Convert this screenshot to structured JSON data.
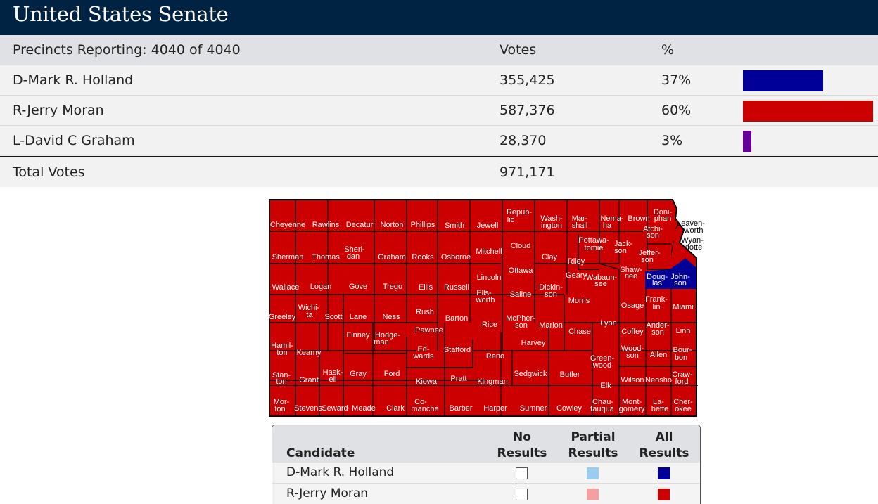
{
  "title": "United States Senate",
  "header": {
    "precincts": "Precincts Reporting: 4040 of 4040",
    "votes_label": "Votes",
    "pct_label": "%"
  },
  "candidates": [
    {
      "name": "D-Mark R. Holland",
      "votes": "355,425",
      "pct": "37%",
      "share": 0.37,
      "color": "#000099"
    },
    {
      "name": "R-Jerry Moran",
      "votes": "587,376",
      "pct": "60%",
      "share": 0.6,
      "color": "#cc0000"
    },
    {
      "name": "L-David C Graham",
      "votes": "28,370",
      "pct": "3%",
      "share": 0.03,
      "color": "#660099"
    }
  ],
  "total": {
    "label": "Total Votes",
    "votes": "971,171"
  },
  "map": {
    "colors": {
      "republican": "#cc0000",
      "democrat": "#000099"
    },
    "counties": [
      [
        "Cheyenne",
        "republican"
      ],
      [
        "Rawlins",
        "republican"
      ],
      [
        "Decatur",
        "republican"
      ],
      [
        "Norton",
        "republican"
      ],
      [
        "Phillips",
        "republican"
      ],
      [
        "Smith",
        "republican"
      ],
      [
        "Jewell",
        "republican"
      ],
      [
        "Repub-",
        "republican"
      ],
      [
        "lic",
        "republican"
      ],
      [
        "Wash-",
        "republican"
      ],
      [
        "ington",
        "republican"
      ],
      [
        "Mar-",
        "republican"
      ],
      [
        "shall",
        "republican"
      ],
      [
        "Nema-",
        "republican"
      ],
      [
        "ha",
        "republican"
      ],
      [
        "Brown",
        "republican"
      ],
      [
        "Doni-",
        "republican"
      ],
      [
        "phan",
        "republican"
      ],
      [
        "Sherman",
        "republican"
      ],
      [
        "Thomas",
        "republican"
      ],
      [
        "Sheri-",
        "republican"
      ],
      [
        "dan",
        "republican"
      ],
      [
        "Graham",
        "republican"
      ],
      [
        "Rooks",
        "republican"
      ],
      [
        "Osborne",
        "republican"
      ],
      [
        "Mitchell",
        "republican"
      ],
      [
        "Cloud",
        "republican"
      ],
      [
        "Clay",
        "republican"
      ],
      [
        "Riley",
        "republican"
      ],
      [
        "Pottawa-",
        "republican"
      ],
      [
        "tomie",
        "republican"
      ],
      [
        "Jack-",
        "republican"
      ],
      [
        "son",
        "republican"
      ],
      [
        "Atchi-",
        "republican"
      ],
      [
        "son",
        "republican"
      ],
      [
        "Jeffer-",
        "republican"
      ],
      [
        "son",
        "republican"
      ],
      [
        "Wallace",
        "republican"
      ],
      [
        "Logan",
        "republican"
      ],
      [
        "Gove",
        "republican"
      ],
      [
        "Trego",
        "republican"
      ],
      [
        "Ellis",
        "republican"
      ],
      [
        "Russell",
        "republican"
      ],
      [
        "Lincoln",
        "republican"
      ],
      [
        "Ottawa",
        "republican"
      ],
      [
        "Geary",
        "republican"
      ],
      [
        "Wabaun-",
        "republican"
      ],
      [
        "see",
        "republican"
      ],
      [
        "Shaw-",
        "republican"
      ],
      [
        "nee",
        "republican"
      ],
      [
        "Doug-",
        "democrat"
      ],
      [
        "las",
        "democrat"
      ],
      [
        "John-",
        "democrat"
      ],
      [
        "son",
        "democrat"
      ],
      [
        "Ells-",
        "republican"
      ],
      [
        "worth",
        "republican"
      ],
      [
        "Saline",
        "republican"
      ],
      [
        "Dickin-",
        "republican"
      ],
      [
        "son",
        "republican"
      ],
      [
        "Morris",
        "republican"
      ],
      [
        "Osage",
        "republican"
      ],
      [
        "Frank-",
        "republican"
      ],
      [
        "lin",
        "republican"
      ],
      [
        "Miami",
        "republican"
      ],
      [
        "Greeley",
        "republican"
      ],
      [
        "Wichi-",
        "republican"
      ],
      [
        "ta",
        "republican"
      ],
      [
        "Scott",
        "republican"
      ],
      [
        "Lane",
        "republican"
      ],
      [
        "Ness",
        "republican"
      ],
      [
        "Rush",
        "republican"
      ],
      [
        "Barton",
        "republican"
      ],
      [
        "Rice",
        "republican"
      ],
      [
        "McPher-",
        "republican"
      ],
      [
        "son",
        "republican"
      ],
      [
        "Marion",
        "republican"
      ],
      [
        "Chase",
        "republican"
      ],
      [
        "Lyon",
        "republican"
      ],
      [
        "Coffey",
        "republican"
      ],
      [
        "Ander-",
        "republican"
      ],
      [
        "son",
        "republican"
      ],
      [
        "Linn",
        "republican"
      ],
      [
        "Hamil-",
        "republican"
      ],
      [
        "ton",
        "republican"
      ],
      [
        "Kearny",
        "republican"
      ],
      [
        "Finney",
        "republican"
      ],
      [
        "Hodge-",
        "republican"
      ],
      [
        "man",
        "republican"
      ],
      [
        "Pawnee",
        "republican"
      ],
      [
        "Ed-",
        "republican"
      ],
      [
        "wards",
        "republican"
      ],
      [
        "Stafford",
        "republican"
      ],
      [
        "Reno",
        "republican"
      ],
      [
        "Harvey",
        "republican"
      ],
      [
        "Green-",
        "republican"
      ],
      [
        "wood",
        "republican"
      ],
      [
        "Wood-",
        "republican"
      ],
      [
        "son",
        "republican"
      ],
      [
        "Allen",
        "republican"
      ],
      [
        "Bour-",
        "republican"
      ],
      [
        "bon",
        "republican"
      ],
      [
        "Stan-",
        "republican"
      ],
      [
        "ton",
        "republican"
      ],
      [
        "Grant",
        "republican"
      ],
      [
        "Hask-",
        "republican"
      ],
      [
        "ell",
        "republican"
      ],
      [
        "Gray",
        "republican"
      ],
      [
        "Ford",
        "republican"
      ],
      [
        "Kiowa",
        "republican"
      ],
      [
        "Pratt",
        "republican"
      ],
      [
        "Kingman",
        "republican"
      ],
      [
        "Sedgwick",
        "republican"
      ],
      [
        "Butler",
        "republican"
      ],
      [
        "Elk",
        "republican"
      ],
      [
        "Wilson",
        "republican"
      ],
      [
        "Neosho",
        "republican"
      ],
      [
        "Craw-",
        "republican"
      ],
      [
        "ford",
        "republican"
      ],
      [
        "Mor-",
        "republican"
      ],
      [
        "ton",
        "republican"
      ],
      [
        "Stevens",
        "republican"
      ],
      [
        "Seward",
        "republican"
      ],
      [
        "Meade",
        "republican"
      ],
      [
        "Clark",
        "republican"
      ],
      [
        "Co-",
        "republican"
      ],
      [
        "manche",
        "republican"
      ],
      [
        "Barber",
        "republican"
      ],
      [
        "Harper",
        "republican"
      ],
      [
        "Sumner",
        "republican"
      ],
      [
        "Cowley",
        "republican"
      ],
      [
        "Chau-",
        "republican"
      ],
      [
        "tauqua",
        "republican"
      ],
      [
        "Mont-",
        "republican"
      ],
      [
        "gomery",
        "republican"
      ],
      [
        "La-",
        "republican"
      ],
      [
        "bette",
        "republican"
      ],
      [
        "Cher-",
        "republican"
      ],
      [
        "okee",
        "republican"
      ]
    ],
    "callouts": [
      "Leaven-",
      "worth",
      "Wyan-",
      "dotte"
    ]
  },
  "legend": {
    "candidate_label": "Candidate",
    "columns": [
      [
        "No",
        "Results"
      ],
      [
        "Partial",
        "Results"
      ],
      [
        "All",
        "Results"
      ]
    ],
    "rows": [
      {
        "name": "D-Mark R. Holland",
        "partial": "#99ccee",
        "all": "#000099"
      },
      {
        "name": "R-Jerry Moran",
        "partial": "#f4a0a0",
        "all": "#cc0000"
      }
    ]
  }
}
